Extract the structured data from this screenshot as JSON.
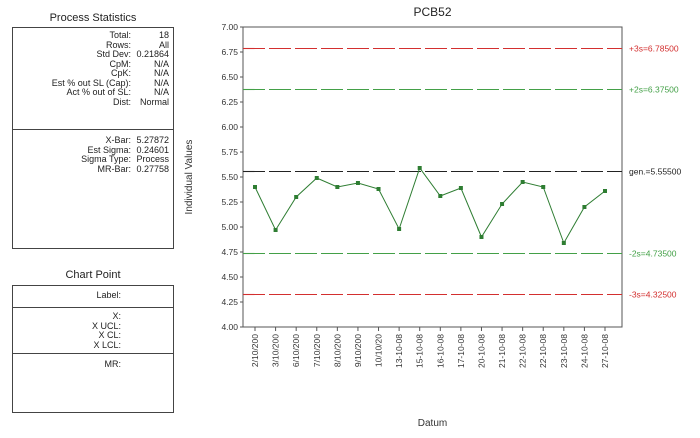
{
  "left_panel": {
    "process_stats_title": "Process Statistics",
    "stats_a": [
      {
        "label": "Total:",
        "value": "18"
      },
      {
        "label": "Rows:",
        "value": "All"
      },
      {
        "label": "Std Dev:",
        "value": "0.21864"
      },
      {
        "label": "CpM:",
        "value": "N/A"
      },
      {
        "label": "CpK:",
        "value": "N/A"
      },
      {
        "label": "Est % out SL (Cap):",
        "value": "N/A"
      },
      {
        "label": "Act % out of SL:",
        "value": "N/A"
      },
      {
        "label": "Dist:",
        "value": "Normal"
      }
    ],
    "stats_b": [
      {
        "label": "X-Bar:",
        "value": "5.27872"
      },
      {
        "label": "Est Sigma:",
        "value": "0.24601"
      },
      {
        "label": "Sigma Type:",
        "value": "Process"
      },
      {
        "label": "MR-Bar:",
        "value": "0.27758"
      }
    ],
    "chart_point_title": "Chart Point",
    "chart_point": {
      "label": "Label:",
      "x": "X:",
      "xucl": "X UCL:",
      "xcl": "X CL:",
      "xlcl": "X LCL:",
      "mr": "MR:"
    }
  },
  "chart_data": {
    "type": "line",
    "title": "PCB52",
    "xlabel": "Datum",
    "ylabel": "Individual Values",
    "ylim": [
      4.0,
      7.0
    ],
    "yticks": [
      "4.00",
      "4.25",
      "4.50",
      "4.75",
      "5.00",
      "5.25",
      "5.50",
      "5.75",
      "6.00",
      "6.25",
      "6.50",
      "6.75",
      "7.00"
    ],
    "categories": [
      "2/10/200",
      "3/10/200",
      "6/10/200",
      "7/10/200",
      "8/10/200",
      "9/10/200",
      "10/10/20",
      "13-10-08",
      "15-10-08",
      "16-10-08",
      "17-10-08",
      "20-10-08",
      "21-10-08",
      "22-10-08",
      "22-10-08",
      "23-10-08",
      "24-10-08",
      "27-10-08"
    ],
    "series": [
      {
        "values": [
          5.4,
          4.97,
          5.3,
          5.49,
          5.4,
          5.44,
          5.38,
          4.98,
          5.59,
          5.31,
          5.39,
          4.9,
          5.23,
          5.45,
          5.4,
          4.84,
          5.2,
          5.36
        ],
        "color": "#2e7d32"
      }
    ],
    "reference_lines": [
      {
        "label": "+3s=6.78500",
        "value": 6.785,
        "color": "#d32f2f"
      },
      {
        "label": "+2s=6.37500",
        "value": 6.375,
        "color": "#43a047"
      },
      {
        "label": "gen.=5.55500",
        "value": 5.555,
        "color": "#222222"
      },
      {
        "label": "-2s=4.73500",
        "value": 4.735,
        "color": "#43a047"
      },
      {
        "label": "-3s=4.32500",
        "value": 4.325,
        "color": "#d32f2f"
      }
    ],
    "grid": false
  }
}
